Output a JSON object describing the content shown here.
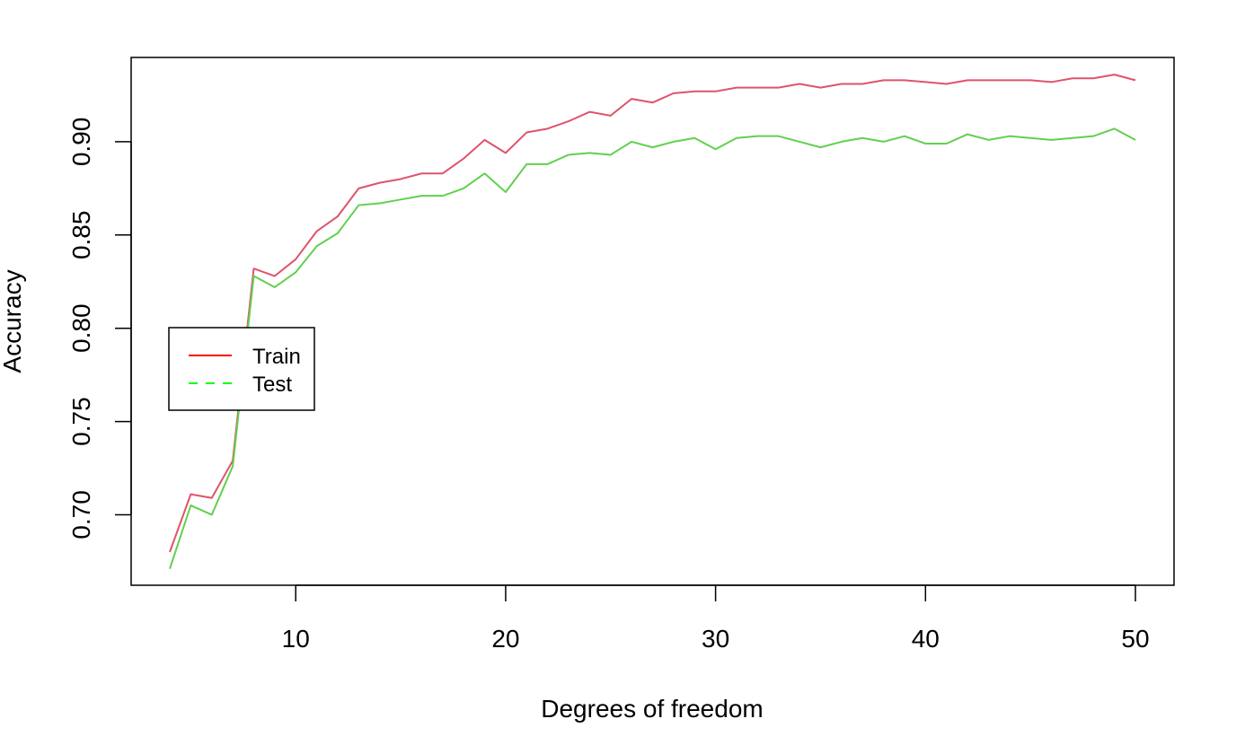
{
  "chart_data": {
    "type": "line",
    "title": "",
    "xlabel": "Degrees of freedom",
    "ylabel": "Accuracy",
    "xlim": [
      2.16,
      51.84
    ],
    "ylim": [
      0.6622,
      0.9452
    ],
    "xticks": [
      10,
      20,
      30,
      40,
      50
    ],
    "yticks": [
      0.7,
      0.75,
      0.8,
      0.85,
      0.9
    ],
    "ytick_labels": [
      "0.70",
      "0.75",
      "0.80",
      "0.85",
      "0.90"
    ],
    "xtick_labels": [
      "10",
      "20",
      "30",
      "40",
      "50"
    ],
    "grid": false,
    "legend_position": "left",
    "x": [
      4,
      5,
      6,
      7,
      8,
      9,
      10,
      11,
      12,
      13,
      14,
      15,
      16,
      17,
      18,
      19,
      20,
      21,
      22,
      23,
      24,
      25,
      26,
      27,
      28,
      29,
      30,
      31,
      32,
      33,
      34,
      35,
      36,
      37,
      38,
      39,
      40,
      41,
      42,
      43,
      44,
      45,
      46,
      47,
      48,
      49,
      50
    ],
    "series": [
      {
        "name": "Train",
        "color": "#DF536B",
        "legend_color": "#FF0000",
        "dash": "solid",
        "values": [
          0.68,
          0.711,
          0.709,
          0.729,
          0.832,
          0.828,
          0.837,
          0.852,
          0.86,
          0.875,
          0.878,
          0.88,
          0.883,
          0.883,
          0.891,
          0.901,
          0.894,
          0.905,
          0.907,
          0.911,
          0.916,
          0.914,
          0.923,
          0.921,
          0.926,
          0.927,
          0.927,
          0.929,
          0.929,
          0.929,
          0.931,
          0.929,
          0.931,
          0.931,
          0.933,
          0.933,
          0.932,
          0.931,
          0.933,
          0.933,
          0.933,
          0.933,
          0.932,
          0.934,
          0.934,
          0.936,
          0.933
        ]
      },
      {
        "name": "Test",
        "color": "#61D04F",
        "legend_color": "#00FF00",
        "dash": "dashed",
        "values": [
          0.671,
          0.705,
          0.7,
          0.726,
          0.828,
          0.822,
          0.83,
          0.844,
          0.851,
          0.866,
          0.867,
          0.869,
          0.871,
          0.871,
          0.875,
          0.883,
          0.873,
          0.888,
          0.888,
          0.893,
          0.894,
          0.893,
          0.9,
          0.897,
          0.9,
          0.902,
          0.896,
          0.902,
          0.903,
          0.903,
          0.9,
          0.897,
          0.9,
          0.902,
          0.9,
          0.903,
          0.899,
          0.899,
          0.904,
          0.901,
          0.903,
          0.902,
          0.901,
          0.902,
          0.903,
          0.907,
          0.901
        ]
      }
    ]
  }
}
